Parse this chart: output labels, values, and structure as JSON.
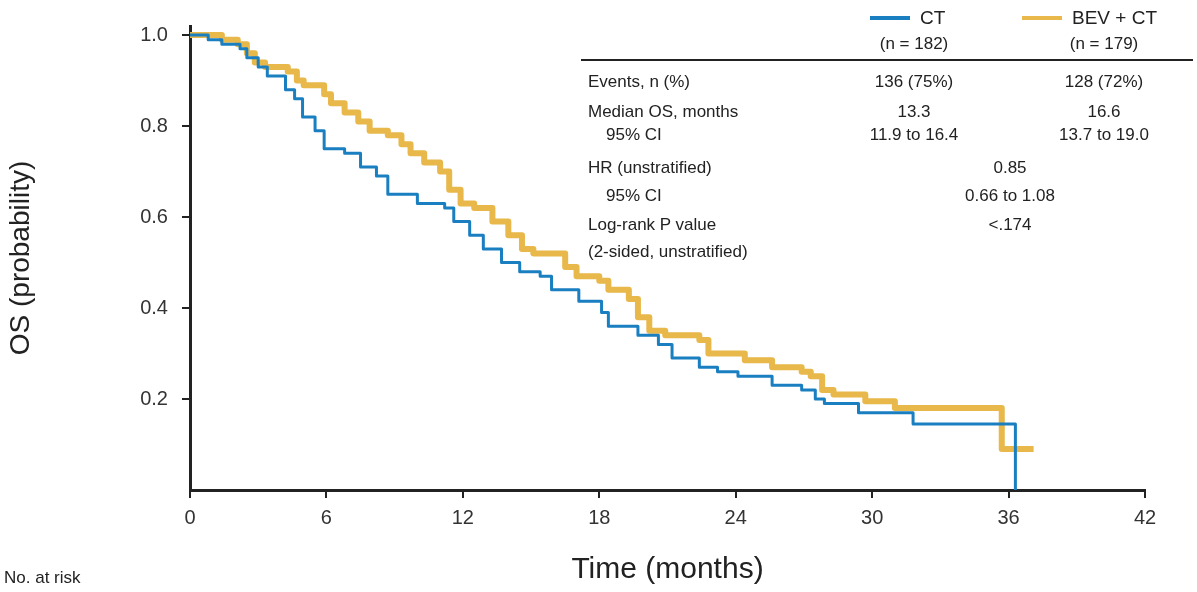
{
  "chart_data": {
    "type": "step",
    "xlabel": "Time (months)",
    "ylabel": "OS (probability)",
    "xlim": [
      0,
      42
    ],
    "xticks": [
      0,
      6,
      12,
      18,
      24,
      30,
      36,
      42
    ],
    "ylim": [
      0,
      1.02
    ],
    "yticks": [
      0.2,
      0.4,
      0.6,
      {
        "value": 0.8,
        "label": "0.8"
      },
      {
        "value": 1,
        "label": "1.0"
      }
    ],
    "grid": false,
    "legend": "top right",
    "marker": "none",
    "line_style": "solid",
    "series": [
      {
        "name": "CT",
        "color": "#1a7fc1",
        "x": [
          0,
          0.8,
          1.4,
          2.2,
          2.5,
          3.0,
          3.4,
          4.2,
          4.6,
          4.95,
          5.5,
          5.9,
          6.8,
          7.5,
          8.2,
          8.7,
          10,
          11.2,
          11.6,
          12.3,
          12.9,
          13.7,
          14.5,
          15.4,
          15.9,
          17.1,
          18.1,
          18.4,
          19.7,
          20.6,
          21.2,
          22.4,
          23.2,
          24.1,
          25.6,
          26.9,
          27.5,
          27.9,
          29.4,
          31.8,
          36.3
        ],
        "values": [
          1,
          0.99,
          0.98,
          0.97,
          0.95,
          0.93,
          0.91,
          0.88,
          0.86,
          0.82,
          0.79,
          0.75,
          0.74,
          0.71,
          0.69,
          0.65,
          0.63,
          0.62,
          0.59,
          0.56,
          0.53,
          0.5,
          0.48,
          0.47,
          0.44,
          0.415,
          0.39,
          0.36,
          0.34,
          0.32,
          0.29,
          0.27,
          0.26,
          0.25,
          0.23,
          0.22,
          0.2,
          0.19,
          0.17,
          0.145,
          0
        ]
      },
      {
        "name": "BEV + CT",
        "color": "#e8b84a",
        "x": [
          0,
          1.4,
          2.1,
          2.5,
          2.85,
          3.3,
          4.3,
          4.7,
          5.0,
          5.9,
          6.2,
          6.8,
          7.4,
          7.9,
          8.7,
          9.3,
          9.7,
          10.3,
          11.0,
          11.4,
          11.9,
          12.5,
          13.3,
          14.0,
          14.6,
          15.1,
          16.5,
          17.0,
          18.0,
          18.4,
          19.3,
          19.7,
          20.2,
          20.9,
          22.4,
          22.8,
          24.4,
          25.6,
          26.9,
          27.3,
          27.8,
          28.3,
          29.7,
          31.0,
          35.7,
          37.1
        ],
        "values": [
          1,
          0.99,
          0.98,
          0.96,
          0.94,
          0.93,
          0.92,
          0.9,
          0.89,
          0.87,
          0.85,
          0.83,
          0.81,
          0.79,
          0.78,
          0.76,
          0.74,
          0.72,
          0.7,
          0.66,
          0.63,
          0.62,
          0.59,
          0.56,
          0.53,
          0.52,
          0.49,
          0.47,
          0.46,
          0.44,
          0.42,
          0.38,
          0.35,
          0.34,
          0.33,
          0.3,
          0.285,
          0.27,
          0.26,
          0.25,
          0.22,
          0.21,
          0.195,
          0.18,
          0.09,
          0.09
        ]
      }
    ],
    "annotations": [
      "(n = 182)",
      "(n = 179)",
      "Events, n (%)",
      "136 (75%)",
      "128 (72%)",
      "Median OS, months",
      "13.3",
      "16.6",
      "95% CI",
      "11.9 to 16.4",
      "13.7 to 19.0",
      "HR (unstratified)",
      "0.85",
      "95% CI",
      "0.66 to 1.08",
      "Log-rank P value",
      "<.174",
      "(2-sided, unstratified)",
      "No. at risk"
    ]
  }
}
